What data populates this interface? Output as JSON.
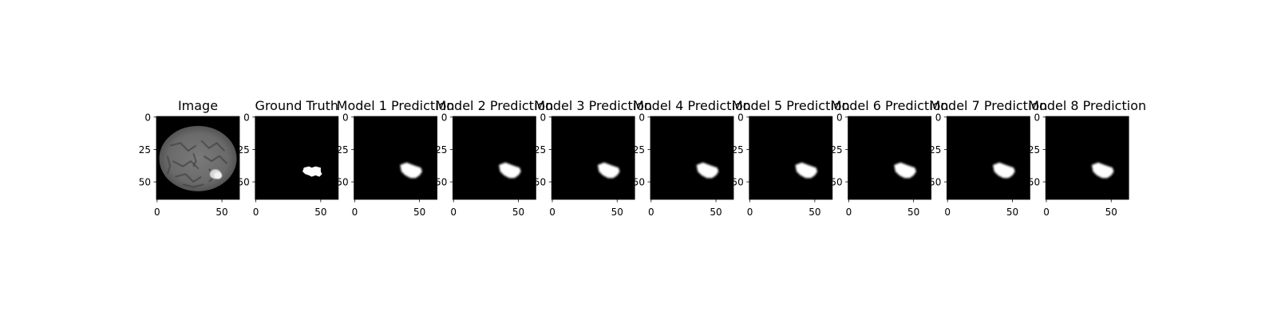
{
  "chart_data": [
    {
      "type": "heatmap",
      "title": "Image",
      "content": "mri-slice",
      "xticks": [
        "0",
        "50"
      ],
      "yticks": [
        "0",
        "25",
        "50"
      ],
      "xlim": [
        0,
        64
      ],
      "ylim": [
        64,
        0
      ]
    },
    {
      "type": "heatmap",
      "title": "Ground Truth",
      "content": "ground-truth-mask",
      "xticks": [
        "0",
        "50"
      ],
      "yticks": [
        "0",
        "25",
        "50"
      ],
      "xlim": [
        0,
        64
      ],
      "ylim": [
        64,
        0
      ]
    },
    {
      "type": "heatmap",
      "title": "Model 1 Prediction",
      "content": "predicted-mask",
      "xticks": [
        "0",
        "50"
      ],
      "yticks": [
        "0",
        "25",
        "50"
      ],
      "xlim": [
        0,
        64
      ],
      "ylim": [
        64,
        0
      ]
    },
    {
      "type": "heatmap",
      "title": "Model 2 Prediction",
      "content": "predicted-mask",
      "xticks": [
        "0",
        "50"
      ],
      "yticks": [
        "0",
        "25",
        "50"
      ],
      "xlim": [
        0,
        64
      ],
      "ylim": [
        64,
        0
      ]
    },
    {
      "type": "heatmap",
      "title": "Model 3 Prediction",
      "content": "predicted-mask",
      "xticks": [
        "0",
        "50"
      ],
      "yticks": [
        "0",
        "25",
        "50"
      ],
      "xlim": [
        0,
        64
      ],
      "ylim": [
        64,
        0
      ]
    },
    {
      "type": "heatmap",
      "title": "Model 4 Prediction",
      "content": "predicted-mask",
      "xticks": [
        "0",
        "50"
      ],
      "yticks": [
        "0",
        "25",
        "50"
      ],
      "xlim": [
        0,
        64
      ],
      "ylim": [
        64,
        0
      ]
    },
    {
      "type": "heatmap",
      "title": "Model 5 Prediction",
      "content": "predicted-mask",
      "xticks": [
        "0",
        "50"
      ],
      "yticks": [
        "0",
        "25",
        "50"
      ],
      "xlim": [
        0,
        64
      ],
      "ylim": [
        64,
        0
      ]
    },
    {
      "type": "heatmap",
      "title": "Model 6 Prediction",
      "content": "predicted-mask",
      "xticks": [
        "0",
        "50"
      ],
      "yticks": [
        "0",
        "25",
        "50"
      ],
      "xlim": [
        0,
        64
      ],
      "ylim": [
        64,
        0
      ]
    },
    {
      "type": "heatmap",
      "title": "Model 7 Prediction",
      "content": "predicted-mask",
      "xticks": [
        "0",
        "50"
      ],
      "yticks": [
        "0",
        "25",
        "50"
      ],
      "xlim": [
        0,
        64
      ],
      "ylim": [
        64,
        0
      ]
    },
    {
      "type": "heatmap",
      "title": "Model 8 Prediction",
      "content": "predicted-mask",
      "xticks": [
        "0",
        "50"
      ],
      "yticks": [
        "0",
        "25",
        "50"
      ],
      "xlim": [
        0,
        64
      ],
      "ylim": [
        64,
        0
      ]
    }
  ],
  "colors": {
    "background": "#ffffff",
    "image_background": "#000000",
    "mask": "#ffffff",
    "axis": "#000000",
    "text": "#000000"
  },
  "colormap": "gray"
}
